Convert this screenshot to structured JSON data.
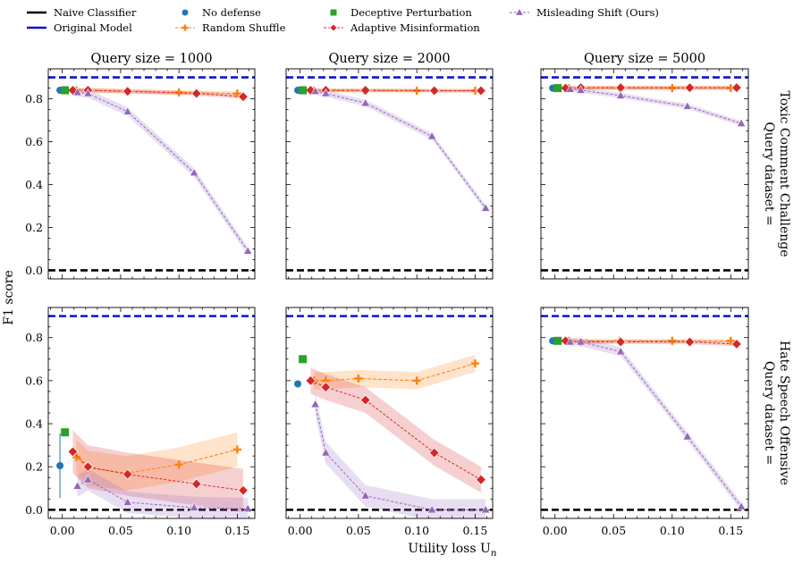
{
  "figure": {
    "ylabel": "F1 score",
    "xlabel": "Utility loss U",
    "xlabel_sub": "n"
  },
  "legend": [
    {
      "label": "Naive Classifier",
      "marker": "dash",
      "color": "#000000"
    },
    {
      "label": "Original Model",
      "marker": "dash",
      "color": "#1010d8"
    },
    {
      "label": "No defense",
      "marker": "circle",
      "color": "#1f77b4"
    },
    {
      "label": "Random Shuffle",
      "marker": "plus-line",
      "color": "#ff7f0e"
    },
    {
      "label": "Deceptive Perturbation",
      "marker": "square",
      "color": "#2ca02c"
    },
    {
      "label": "Adaptive Misinformation",
      "marker": "diamond-line",
      "color": "#d62728"
    },
    {
      "label": "Misleading Shift (Ours)",
      "marker": "triangle-line",
      "color": "#9467bd"
    }
  ],
  "columns": [
    "Query size = 1000",
    "Query size = 2000",
    "Query size = 5000"
  ],
  "rows": [
    [
      "Query dataset =",
      "Toxic Comment Challenge"
    ],
    [
      "Query dataset =",
      "Hate Speech Offensive"
    ]
  ],
  "chart_data": [
    {
      "type": "line",
      "title": "Query size = 1000",
      "row": "Toxic Comment Challenge",
      "xlim": [
        -0.012,
        0.165
      ],
      "ylim": [
        -0.04,
        0.94
      ],
      "x_ticks": [
        "0.00",
        "0.05",
        "0.10",
        "0.15"
      ],
      "y_ticks": [
        "0.0",
        "0.2",
        "0.4",
        "0.6",
        "0.8"
      ],
      "naive_classifier": 0.0,
      "original_model": 0.9,
      "no_defense": {
        "x": -0.002,
        "y": 0.84
      },
      "deceptive_perturbation": {
        "x": 0.0,
        "y": 0.84
      },
      "series": [
        {
          "name": "Random Shuffle",
          "x": [
            0.012,
            0.022,
            0.055,
            0.1,
            0.15
          ],
          "y": [
            0.84,
            0.84,
            0.835,
            0.83,
            0.825
          ],
          "band": 0.01
        },
        {
          "name": "Adaptive Misinformation",
          "x": [
            0.009,
            0.022,
            0.056,
            0.115,
            0.155
          ],
          "y": [
            0.84,
            0.84,
            0.835,
            0.825,
            0.81
          ],
          "band": 0.01
        },
        {
          "name": "Misleading Shift (Ours)",
          "x": [
            0.013,
            0.022,
            0.056,
            0.113,
            0.159
          ],
          "y": [
            0.83,
            0.825,
            0.74,
            0.455,
            0.09
          ],
          "band": 0.02
        }
      ]
    },
    {
      "type": "line",
      "title": "Query size = 2000",
      "row": "Toxic Comment Challenge",
      "xlim": [
        -0.012,
        0.165
      ],
      "ylim": [
        -0.04,
        0.94
      ],
      "x_ticks": [
        "0.00",
        "0.05",
        "0.10",
        "0.15"
      ],
      "y_ticks": [
        "0.0",
        "0.2",
        "0.4",
        "0.6",
        "0.8"
      ],
      "naive_classifier": 0.0,
      "original_model": 0.9,
      "no_defense": {
        "x": -0.002,
        "y": 0.84
      },
      "deceptive_perturbation": {
        "x": 0.0,
        "y": 0.84
      },
      "series": [
        {
          "name": "Random Shuffle",
          "x": [
            0.012,
            0.022,
            0.055,
            0.1,
            0.15
          ],
          "y": [
            0.838,
            0.838,
            0.838,
            0.838,
            0.838
          ],
          "band": 0.008
        },
        {
          "name": "Adaptive Misinformation",
          "x": [
            0.009,
            0.022,
            0.056,
            0.115,
            0.155
          ],
          "y": [
            0.84,
            0.84,
            0.84,
            0.838,
            0.838
          ],
          "band": 0.008
        },
        {
          "name": "Misleading Shift (Ours)",
          "x": [
            0.013,
            0.022,
            0.056,
            0.113,
            0.159
          ],
          "y": [
            0.835,
            0.825,
            0.78,
            0.625,
            0.29
          ],
          "band": 0.015
        }
      ]
    },
    {
      "type": "line",
      "title": "Query size = 5000",
      "row": "Toxic Comment Challenge",
      "xlim": [
        -0.012,
        0.165
      ],
      "ylim": [
        -0.04,
        0.94
      ],
      "x_ticks": [
        "0.00",
        "0.05",
        "0.10",
        "0.15"
      ],
      "y_ticks": [
        "0.0",
        "0.2",
        "0.4",
        "0.6",
        "0.8"
      ],
      "naive_classifier": 0.0,
      "original_model": 0.9,
      "no_defense": {
        "x": -0.002,
        "y": 0.85
      },
      "deceptive_perturbation": {
        "x": 0.0,
        "y": 0.85
      },
      "series": [
        {
          "name": "Random Shuffle",
          "x": [
            0.012,
            0.022,
            0.055,
            0.1,
            0.15
          ],
          "y": [
            0.85,
            0.85,
            0.85,
            0.85,
            0.85
          ],
          "band": 0.01
        },
        {
          "name": "Adaptive Misinformation",
          "x": [
            0.009,
            0.022,
            0.056,
            0.115,
            0.155
          ],
          "y": [
            0.85,
            0.852,
            0.852,
            0.852,
            0.852
          ],
          "band": 0.008
        },
        {
          "name": "Misleading Shift (Ours)",
          "x": [
            0.013,
            0.022,
            0.056,
            0.113,
            0.159
          ],
          "y": [
            0.845,
            0.84,
            0.815,
            0.765,
            0.685
          ],
          "band": 0.012
        }
      ]
    },
    {
      "type": "line",
      "title": "",
      "row": "Hate Speech Offensive",
      "xlim": [
        -0.012,
        0.165
      ],
      "ylim": [
        -0.04,
        0.94
      ],
      "x_ticks": [
        "0.00",
        "0.05",
        "0.10",
        "0.15"
      ],
      "y_ticks": [
        "0.0",
        "0.2",
        "0.4",
        "0.6",
        "0.8"
      ],
      "naive_classifier": 0.0,
      "original_model": 0.9,
      "no_defense": {
        "x": -0.002,
        "y": 0.205,
        "err": 0.15
      },
      "deceptive_perturbation": {
        "x": 0.0,
        "y": 0.36
      },
      "series": [
        {
          "name": "Random Shuffle",
          "x": [
            0.012,
            0.022,
            0.055,
            0.1,
            0.15
          ],
          "y": [
            0.245,
            0.195,
            0.17,
            0.21,
            0.28
          ],
          "band": 0.08
        },
        {
          "name": "Adaptive Misinformation",
          "x": [
            0.009,
            0.022,
            0.056,
            0.115,
            0.155
          ],
          "y": [
            0.27,
            0.2,
            0.165,
            0.12,
            0.09
          ],
          "band": 0.1
        },
        {
          "name": "Misleading Shift (Ours)",
          "x": [
            0.013,
            0.022,
            0.056,
            0.113,
            0.159
          ],
          "y": [
            0.11,
            0.14,
            0.035,
            0.01,
            0.005
          ],
          "band": 0.05
        }
      ]
    },
    {
      "type": "line",
      "title": "",
      "row": "Hate Speech Offensive",
      "xlim": [
        -0.012,
        0.165
      ],
      "ylim": [
        -0.04,
        0.94
      ],
      "x_ticks": [
        "0.00",
        "0.05",
        "0.10",
        "0.15"
      ],
      "y_ticks": [
        "0.0",
        "0.2",
        "0.4",
        "0.6",
        "0.8"
      ],
      "naive_classifier": 0.0,
      "original_model": 0.9,
      "no_defense": {
        "x": -0.002,
        "y": 0.585
      },
      "deceptive_perturbation": {
        "x": 0.0,
        "y": 0.7
      },
      "series": [
        {
          "name": "Random Shuffle",
          "x": [
            0.012,
            0.022,
            0.05,
            0.1,
            0.15
          ],
          "y": [
            0.6,
            0.6,
            0.61,
            0.6,
            0.68
          ],
          "band": 0.04
        },
        {
          "name": "Adaptive Misinformation",
          "x": [
            0.009,
            0.022,
            0.056,
            0.115,
            0.155
          ],
          "y": [
            0.6,
            0.57,
            0.51,
            0.265,
            0.14
          ],
          "band": 0.06
        },
        {
          "name": "Misleading Shift (Ours)",
          "x": [
            0.013,
            0.022,
            0.056,
            0.113,
            0.159
          ],
          "y": [
            0.49,
            0.265,
            0.065,
            0.0,
            0.0
          ],
          "band": 0.05
        }
      ]
    },
    {
      "type": "line",
      "title": "",
      "row": "Hate Speech Offensive",
      "xlim": [
        -0.012,
        0.165
      ],
      "ylim": [
        -0.04,
        0.94
      ],
      "x_ticks": [
        "0.00",
        "0.05",
        "0.10",
        "0.15"
      ],
      "y_ticks": [
        "0.0",
        "0.2",
        "0.4",
        "0.6",
        "0.8"
      ],
      "naive_classifier": 0.0,
      "original_model": 0.9,
      "no_defense": {
        "x": -0.002,
        "y": 0.785
      },
      "deceptive_perturbation": {
        "x": 0.0,
        "y": 0.785
      },
      "series": [
        {
          "name": "Random Shuffle",
          "x": [
            0.012,
            0.022,
            0.055,
            0.1,
            0.15
          ],
          "y": [
            0.785,
            0.785,
            0.785,
            0.785,
            0.785
          ],
          "band": 0.008
        },
        {
          "name": "Adaptive Misinformation",
          "x": [
            0.009,
            0.022,
            0.056,
            0.115,
            0.155
          ],
          "y": [
            0.785,
            0.78,
            0.78,
            0.78,
            0.77
          ],
          "band": 0.01
        },
        {
          "name": "Misleading Shift (Ours)",
          "x": [
            0.013,
            0.022,
            0.056,
            0.113,
            0.159
          ],
          "y": [
            0.78,
            0.78,
            0.735,
            0.34,
            0.015
          ],
          "band": 0.02
        }
      ]
    }
  ]
}
